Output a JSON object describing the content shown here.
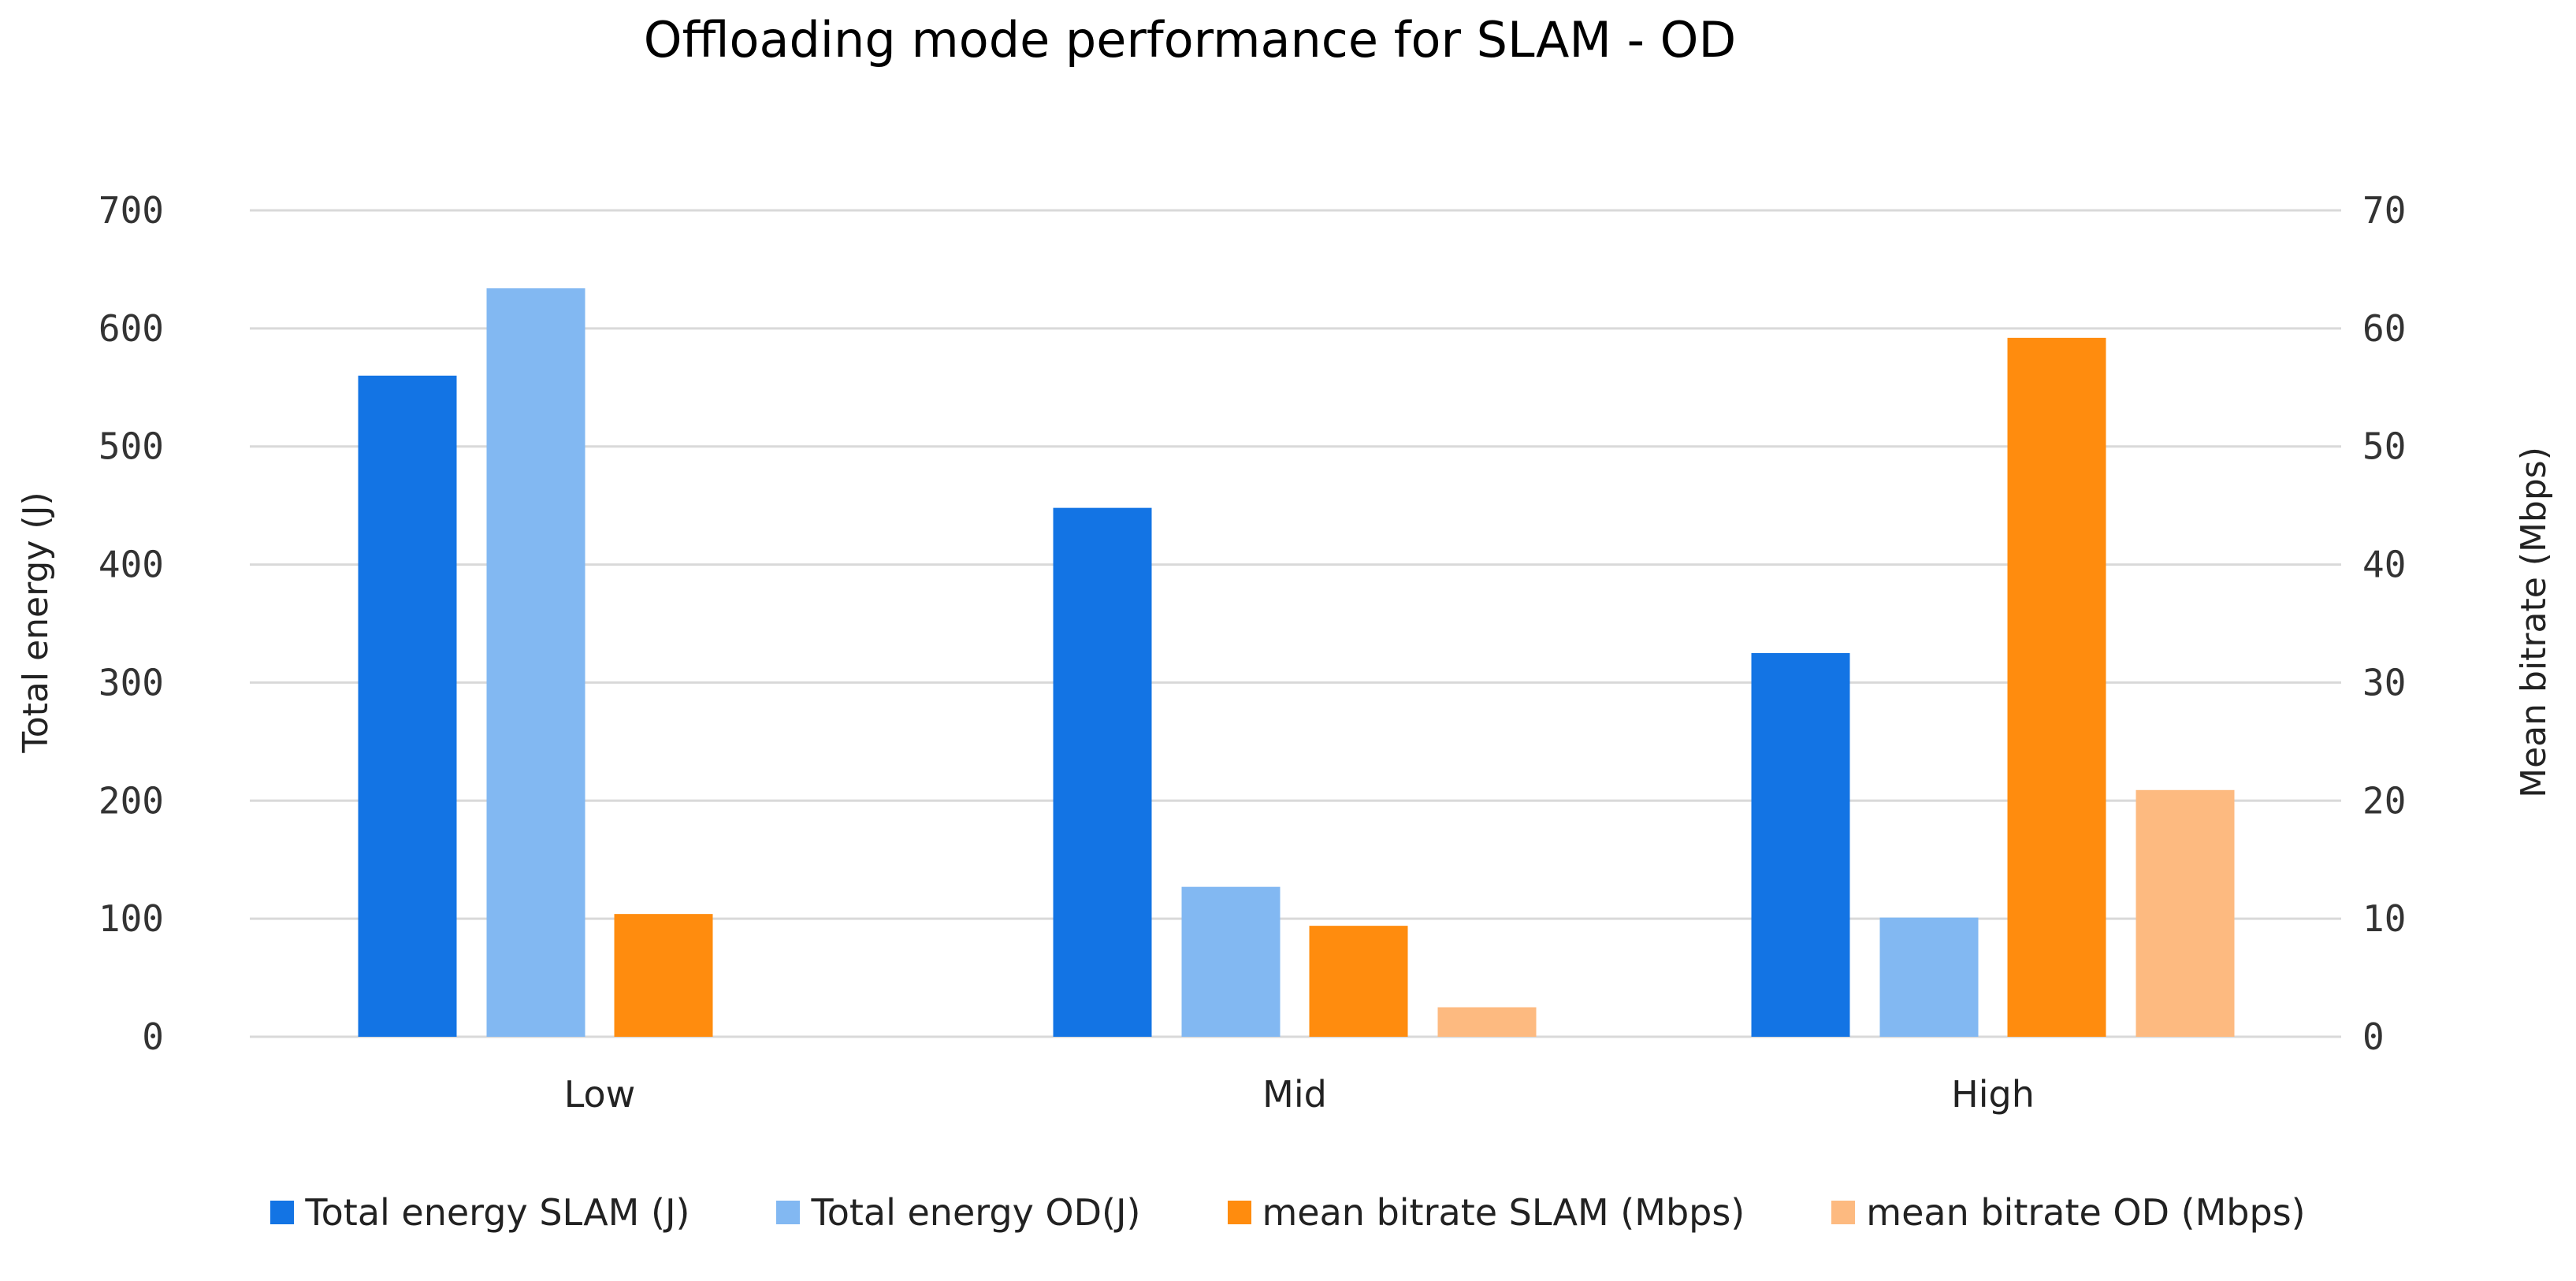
{
  "chart_data": {
    "type": "bar",
    "title": "Offloading mode performance for SLAM - OD",
    "categories": [
      "Low",
      "Mid",
      "High"
    ],
    "ylabel": "Total energy (J)",
    "y2label": "Mean bitrate (Mbps)",
    "ylim": [
      0,
      700
    ],
    "y2lim": [
      0,
      70
    ],
    "yticks": [
      0,
      100,
      200,
      300,
      400,
      500,
      600,
      700
    ],
    "y2ticks": [
      0,
      10,
      20,
      30,
      40,
      50,
      60,
      70
    ],
    "grid": true,
    "legend_position": "bottom",
    "series": [
      {
        "name": "Total energy SLAM (J)",
        "axis": "left",
        "color": "#1374E4",
        "values": [
          560,
          448,
          325
        ]
      },
      {
        "name": "Total energy OD(J)",
        "axis": "left",
        "color": "#82B8F2",
        "values": [
          634,
          127,
          101
        ]
      },
      {
        "name": "mean bitrate SLAM (Mbps)",
        "axis": "right",
        "color": "#FF8C0E",
        "values": [
          10.4,
          9.4,
          59.2
        ]
      },
      {
        "name": "mean bitrate OD (Mbps)",
        "axis": "right",
        "color": "#FDBA80",
        "values": [
          0,
          2.5,
          20.9
        ]
      }
    ]
  }
}
